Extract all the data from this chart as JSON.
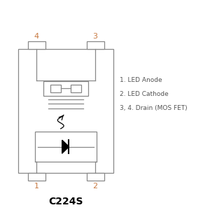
{
  "title": "C224S",
  "bg_color": "#ffffff",
  "line_color": "#888888",
  "text_color_orange": "#c87941",
  "text_color_gray": "#555555",
  "legend_lines": [
    "1. LED Anode",
    "2. LED Cathode",
    "3, 4. Drain (MOS FET)"
  ],
  "title_fontsize": 10,
  "label_fontsize": 6.5,
  "pin_fontsize": 8
}
